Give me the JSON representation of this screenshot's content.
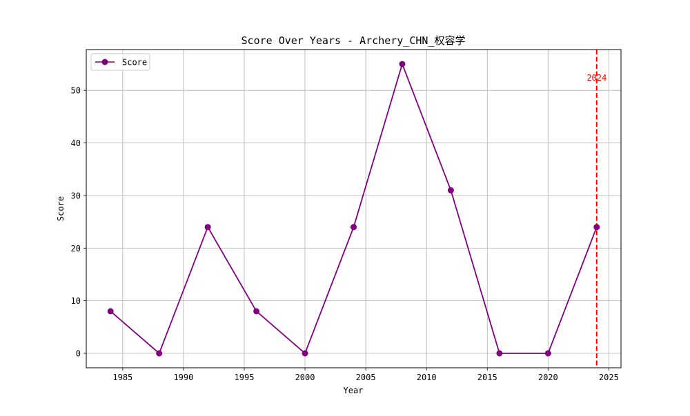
{
  "chart_data": {
    "type": "line",
    "title": "Score Over Years - Archery_CHN_权容学",
    "xlabel": "Year",
    "ylabel": "Score",
    "x": [
      1984,
      1988,
      1992,
      1996,
      2000,
      2004,
      2008,
      2012,
      2016,
      2020,
      2024
    ],
    "series": [
      {
        "name": "Score",
        "values": [
          8,
          0,
          24,
          8,
          0,
          24,
          55,
          31,
          0,
          0,
          24
        ],
        "color": "#800080",
        "marker": "circle"
      }
    ],
    "xlim": [
      1982.0,
      2026.0
    ],
    "ylim": [
      -2.75,
      57.75
    ],
    "xticks": [
      1985,
      1990,
      1995,
      2000,
      2005,
      2010,
      2015,
      2020,
      2025
    ],
    "yticks": [
      0,
      10,
      20,
      30,
      40,
      50
    ],
    "grid": true,
    "legend": {
      "position": "upper-left"
    },
    "annotations": [
      {
        "type": "vline",
        "x": 2024,
        "label": "2024",
        "color": "#ff0000",
        "style": "dashed"
      }
    ]
  }
}
